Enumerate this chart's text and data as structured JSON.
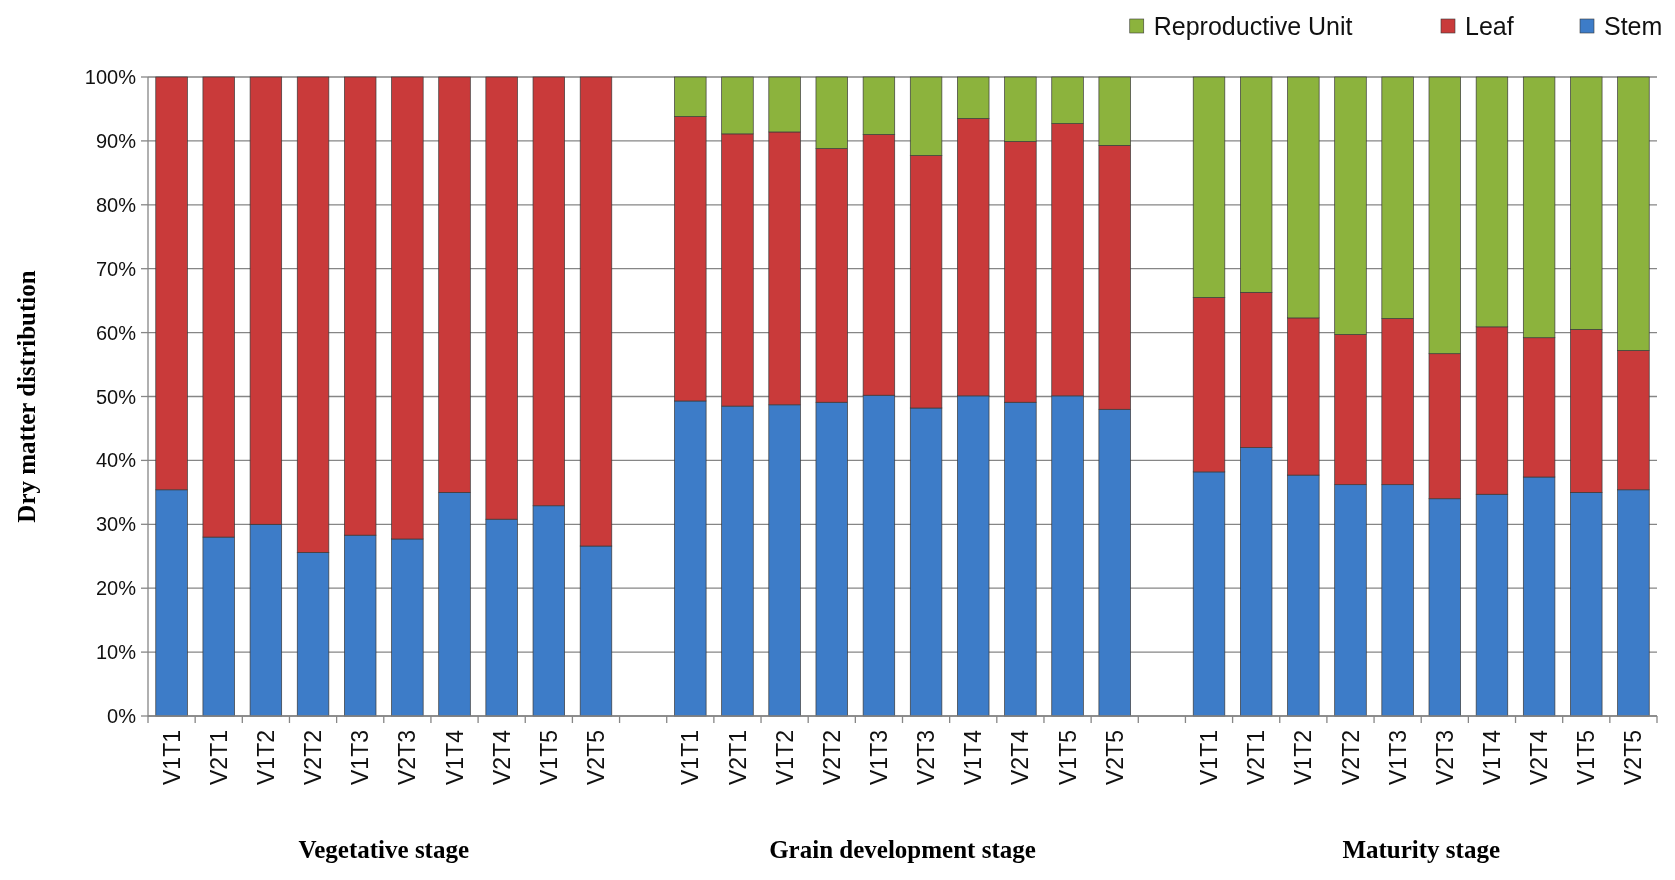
{
  "chart_data": {
    "type": "bar",
    "stacked": true,
    "ylabel": "Dry matter distribution",
    "categories": [
      "V1T1",
      "V2T1",
      "V1T2",
      "V2T2",
      "V1T3",
      "V2T3",
      "V1T4",
      "V2T4",
      "V1T5",
      "V2T5",
      null,
      "V1T1",
      "V2T1",
      "V1T2",
      "V2T2",
      "V1T3",
      "V2T3",
      "V1T4",
      "V2T4",
      "V1T5",
      "V2T5",
      null,
      "V1T1",
      "V2T1",
      "V1T2",
      "V2T2",
      "V1T3",
      "V2T3",
      "V1T4",
      "V2T4",
      "V1T5",
      "V2T5"
    ],
    "series": [
      {
        "name": "Stem",
        "color": "#3d7cc8",
        "values": [
          35.4,
          28.0,
          30.0,
          25.6,
          28.3,
          27.7,
          35.0,
          30.8,
          32.9,
          26.6,
          null,
          49.3,
          48.5,
          48.7,
          49.1,
          50.2,
          48.2,
          50.1,
          49.1,
          50.1,
          48.0,
          null,
          38.2,
          42.0,
          37.7,
          36.2,
          36.2,
          34.0,
          34.7,
          37.4,
          35.0,
          35.4
        ]
      },
      {
        "name": "Leaf",
        "color": "#c93a3a",
        "values": [
          64.6,
          72.0,
          70.0,
          74.4,
          71.7,
          72.3,
          65.0,
          69.2,
          67.1,
          73.4,
          null,
          44.5,
          42.6,
          42.7,
          39.7,
          40.8,
          39.5,
          43.4,
          40.8,
          42.6,
          41.3,
          null,
          27.3,
          24.3,
          24.6,
          23.5,
          26.0,
          22.7,
          26.2,
          21.8,
          25.5,
          21.8
        ]
      },
      {
        "name": "Reproductive Unit",
        "color": "#8cb33d",
        "values": [
          null,
          null,
          null,
          null,
          null,
          null,
          null,
          null,
          null,
          null,
          null,
          6.2,
          8.9,
          8.6,
          11.2,
          9.0,
          12.3,
          6.5,
          10.1,
          7.3,
          10.7,
          null,
          34.5,
          33.7,
          37.7,
          40.3,
          37.8,
          43.3,
          39.1,
          40.8,
          39.5,
          42.8
        ]
      }
    ],
    "ylim": [
      0,
      100
    ],
    "yticks": [
      {
        "value": 0,
        "label": "0%"
      },
      {
        "value": 10,
        "label": "10%"
      },
      {
        "value": 20,
        "label": "20%"
      },
      {
        "value": 30,
        "label": "30%"
      },
      {
        "value": 40,
        "label": "40%"
      },
      {
        "value": 50,
        "label": "50%"
      },
      {
        "value": 60,
        "label": "60%"
      },
      {
        "value": 70,
        "label": "70%"
      },
      {
        "value": 80,
        "label": "80%"
      },
      {
        "value": 90,
        "label": "90%"
      },
      {
        "value": 100,
        "label": "100%"
      }
    ],
    "grid": "y",
    "legend": "top right",
    "annotations": [
      "Vegetative stage",
      "Grain development stage",
      "Maturity stage"
    ]
  }
}
